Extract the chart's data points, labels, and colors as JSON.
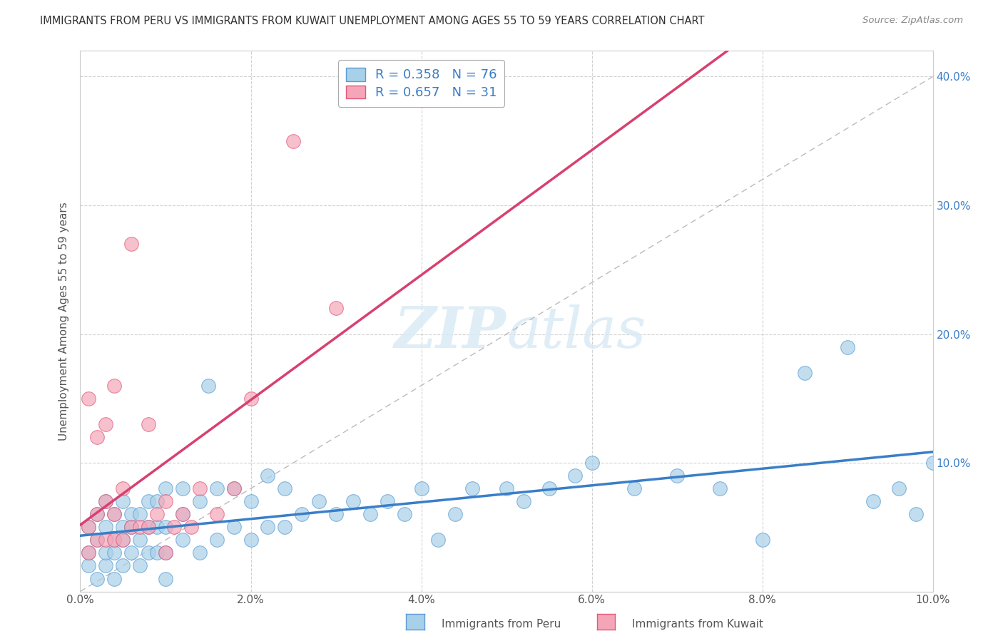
{
  "title": "IMMIGRANTS FROM PERU VS IMMIGRANTS FROM KUWAIT UNEMPLOYMENT AMONG AGES 55 TO 59 YEARS CORRELATION CHART",
  "source": "Source: ZipAtlas.com",
  "ylabel": "Unemployment Among Ages 55 to 59 years",
  "xlim": [
    0.0,
    0.1
  ],
  "ylim": [
    0.0,
    0.42
  ],
  "xticks": [
    0.0,
    0.02,
    0.04,
    0.06,
    0.08,
    0.1
  ],
  "yticks": [
    0.0,
    0.1,
    0.2,
    0.3,
    0.4
  ],
  "xtick_labels": [
    "0.0%",
    "2.0%",
    "4.0%",
    "6.0%",
    "8.0%",
    "10.0%"
  ],
  "ytick_labels_right": [
    "",
    "10.0%",
    "20.0%",
    "30.0%",
    "40.0%"
  ],
  "peru_R": 0.358,
  "peru_N": 76,
  "kuwait_R": 0.657,
  "kuwait_N": 31,
  "peru_color": "#a8d0e8",
  "kuwait_color": "#f4a6b8",
  "peru_edge_color": "#5b9bd5",
  "kuwait_edge_color": "#e05a7a",
  "peru_line_color": "#3a7ec8",
  "kuwait_line_color": "#d84070",
  "watermark_color": "#daeaf5",
  "grid_color": "#cccccc",
  "legend_label_peru": "Immigrants from Peru",
  "legend_label_kuwait": "Immigrants from Kuwait",
  "peru_scatter_x": [
    0.001,
    0.001,
    0.001,
    0.002,
    0.002,
    0.002,
    0.003,
    0.003,
    0.003,
    0.003,
    0.004,
    0.004,
    0.004,
    0.004,
    0.005,
    0.005,
    0.005,
    0.005,
    0.006,
    0.006,
    0.006,
    0.007,
    0.007,
    0.007,
    0.008,
    0.008,
    0.008,
    0.009,
    0.009,
    0.009,
    0.01,
    0.01,
    0.01,
    0.01,
    0.012,
    0.012,
    0.012,
    0.014,
    0.014,
    0.015,
    0.016,
    0.016,
    0.018,
    0.018,
    0.02,
    0.02,
    0.022,
    0.022,
    0.024,
    0.024,
    0.026,
    0.028,
    0.03,
    0.032,
    0.034,
    0.036,
    0.038,
    0.04,
    0.042,
    0.044,
    0.046,
    0.05,
    0.052,
    0.055,
    0.058,
    0.06,
    0.065,
    0.07,
    0.075,
    0.08,
    0.085,
    0.09,
    0.093,
    0.096,
    0.098,
    0.1
  ],
  "peru_scatter_y": [
    0.02,
    0.03,
    0.05,
    0.01,
    0.04,
    0.06,
    0.02,
    0.03,
    0.05,
    0.07,
    0.01,
    0.03,
    0.04,
    0.06,
    0.02,
    0.04,
    0.05,
    0.07,
    0.03,
    0.05,
    0.06,
    0.02,
    0.04,
    0.06,
    0.03,
    0.05,
    0.07,
    0.03,
    0.05,
    0.07,
    0.01,
    0.03,
    0.05,
    0.08,
    0.04,
    0.06,
    0.08,
    0.03,
    0.07,
    0.16,
    0.04,
    0.08,
    0.05,
    0.08,
    0.04,
    0.07,
    0.05,
    0.09,
    0.05,
    0.08,
    0.06,
    0.07,
    0.06,
    0.07,
    0.06,
    0.07,
    0.06,
    0.08,
    0.04,
    0.06,
    0.08,
    0.08,
    0.07,
    0.08,
    0.09,
    0.1,
    0.08,
    0.09,
    0.08,
    0.04,
    0.17,
    0.19,
    0.07,
    0.08,
    0.06,
    0.1
  ],
  "kuwait_scatter_x": [
    0.001,
    0.001,
    0.001,
    0.002,
    0.002,
    0.002,
    0.003,
    0.003,
    0.003,
    0.004,
    0.004,
    0.004,
    0.005,
    0.005,
    0.006,
    0.006,
    0.007,
    0.008,
    0.008,
    0.009,
    0.01,
    0.01,
    0.011,
    0.012,
    0.013,
    0.014,
    0.016,
    0.018,
    0.02,
    0.025,
    0.03
  ],
  "kuwait_scatter_y": [
    0.03,
    0.05,
    0.15,
    0.04,
    0.06,
    0.12,
    0.04,
    0.07,
    0.13,
    0.04,
    0.06,
    0.16,
    0.04,
    0.08,
    0.05,
    0.27,
    0.05,
    0.05,
    0.13,
    0.06,
    0.03,
    0.07,
    0.05,
    0.06,
    0.05,
    0.08,
    0.06,
    0.08,
    0.15,
    0.35,
    0.22
  ]
}
